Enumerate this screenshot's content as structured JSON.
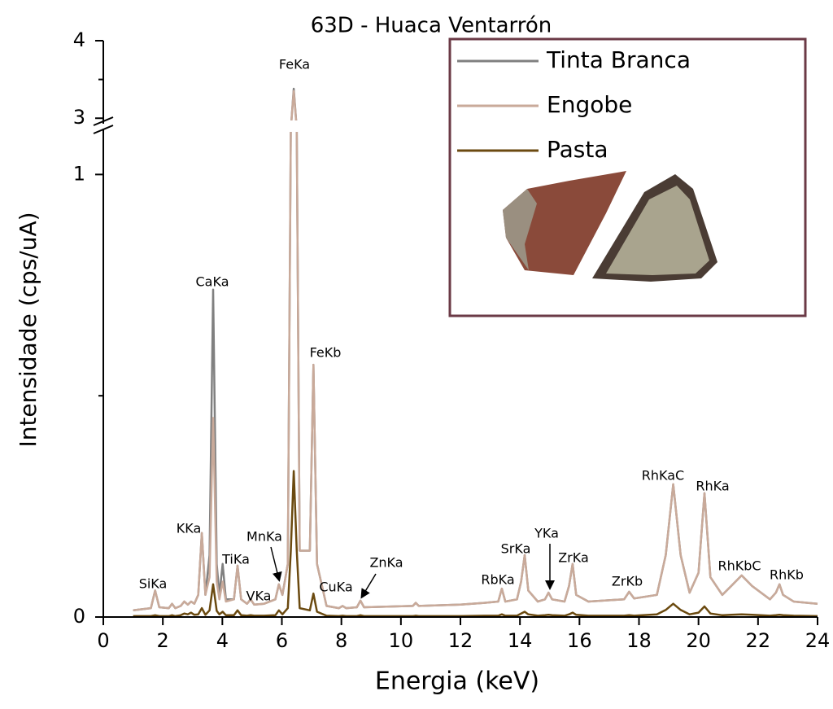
{
  "chart_data": {
    "type": "line",
    "title": "63D - Huaca Ventarrón",
    "x_label": "Energia (keV)",
    "y_label": "Intensidade (cps/uA)",
    "x": [
      1.0,
      1.6,
      1.74,
      1.88,
      2.2,
      2.31,
      2.42,
      2.6,
      2.72,
      2.84,
      2.95,
      3.06,
      3.19,
      3.31,
      3.43,
      3.57,
      3.69,
      3.81,
      3.9,
      4.01,
      4.12,
      4.39,
      4.51,
      4.63,
      4.83,
      4.95,
      5.07,
      5.4,
      5.78,
      5.9,
      6.02,
      6.2,
      6.3,
      6.4,
      6.5,
      6.6,
      6.94,
      7.06,
      7.18,
      7.5,
      7.92,
      8.04,
      8.16,
      8.52,
      8.64,
      8.76,
      10.4,
      10.5,
      10.6,
      12.0,
      12.8,
      13.27,
      13.39,
      13.51,
      13.9,
      14.04,
      14.16,
      14.28,
      14.6,
      14.84,
      14.96,
      15.08,
      15.5,
      15.65,
      15.77,
      15.89,
      16.3,
      17.5,
      17.67,
      17.84,
      18.6,
      18.9,
      19.15,
      19.4,
      19.7,
      20.0,
      20.2,
      20.4,
      20.8,
      21.1,
      21.45,
      21.8,
      22.4,
      22.6,
      22.72,
      22.84,
      23.2,
      24.0
    ],
    "series": [
      {
        "name": "Tinta Branca",
        "color": "#808080",
        "values": [
          0.015,
          0.02,
          0.06,
          0.022,
          0.02,
          0.03,
          0.02,
          0.025,
          0.035,
          0.028,
          0.035,
          0.03,
          0.05,
          0.19,
          0.05,
          0.14,
          0.74,
          0.12,
          0.05,
          0.12,
          0.04,
          0.04,
          0.116,
          0.04,
          0.03,
          0.04,
          0.028,
          0.03,
          0.04,
          0.074,
          0.05,
          0.12,
          1.4,
          3.38,
          1.4,
          0.15,
          0.15,
          0.57,
          0.12,
          0.025,
          0.02,
          0.025,
          0.02,
          0.022,
          0.037,
          0.022,
          0.025,
          0.032,
          0.025,
          0.028,
          0.032,
          0.035,
          0.064,
          0.035,
          0.04,
          0.08,
          0.14,
          0.06,
          0.035,
          0.04,
          0.055,
          0.04,
          0.035,
          0.07,
          0.12,
          0.05,
          0.035,
          0.04,
          0.057,
          0.042,
          0.05,
          0.14,
          0.3,
          0.14,
          0.055,
          0.1,
          0.28,
          0.09,
          0.05,
          0.07,
          0.094,
          0.07,
          0.04,
          0.055,
          0.074,
          0.05,
          0.035,
          0.03
        ]
      },
      {
        "name": "Engobe",
        "color": "#c9aa9a",
        "values": [
          0.015,
          0.02,
          0.06,
          0.022,
          0.02,
          0.03,
          0.02,
          0.025,
          0.035,
          0.028,
          0.035,
          0.03,
          0.05,
          0.19,
          0.05,
          0.09,
          0.45,
          0.08,
          0.04,
          0.08,
          0.035,
          0.04,
          0.116,
          0.04,
          0.03,
          0.04,
          0.028,
          0.03,
          0.04,
          0.074,
          0.05,
          0.12,
          1.4,
          3.35,
          1.4,
          0.15,
          0.15,
          0.57,
          0.12,
          0.025,
          0.02,
          0.025,
          0.02,
          0.022,
          0.037,
          0.022,
          0.025,
          0.032,
          0.025,
          0.028,
          0.032,
          0.035,
          0.064,
          0.035,
          0.04,
          0.08,
          0.14,
          0.06,
          0.035,
          0.04,
          0.055,
          0.04,
          0.035,
          0.07,
          0.12,
          0.05,
          0.035,
          0.04,
          0.057,
          0.042,
          0.05,
          0.14,
          0.3,
          0.14,
          0.055,
          0.1,
          0.28,
          0.09,
          0.05,
          0.07,
          0.094,
          0.07,
          0.04,
          0.055,
          0.074,
          0.05,
          0.035,
          0.03
        ]
      },
      {
        "name": "Pasta",
        "color": "#6b4a10",
        "values": [
          0.002,
          0.002,
          0.004,
          0.002,
          0.002,
          0.004,
          0.002,
          0.004,
          0.008,
          0.006,
          0.01,
          0.005,
          0.006,
          0.02,
          0.005,
          0.015,
          0.074,
          0.014,
          0.006,
          0.012,
          0.004,
          0.004,
          0.015,
          0.004,
          0.003,
          0.004,
          0.003,
          0.003,
          0.004,
          0.015,
          0.006,
          0.02,
          0.15,
          0.33,
          0.15,
          0.02,
          0.015,
          0.053,
          0.012,
          0.003,
          0.002,
          0.003,
          0.002,
          0.002,
          0.004,
          0.002,
          0.002,
          0.003,
          0.002,
          0.002,
          0.003,
          0.003,
          0.006,
          0.003,
          0.003,
          0.008,
          0.012,
          0.006,
          0.003,
          0.004,
          0.005,
          0.004,
          0.003,
          0.006,
          0.01,
          0.005,
          0.003,
          0.003,
          0.004,
          0.003,
          0.006,
          0.016,
          0.03,
          0.016,
          0.006,
          0.01,
          0.024,
          0.008,
          0.004,
          0.005,
          0.006,
          0.005,
          0.003,
          0.004,
          0.005,
          0.004,
          0.003,
          0.002
        ]
      }
    ],
    "annotations": [
      "SiKa",
      "KKa",
      "CaKa",
      "TiKa",
      "VKa",
      "MnKa",
      "FeKa",
      "FeKb",
      "CuKa",
      "ZnKa",
      "RbKa",
      "SrKa",
      "YKa",
      "ZrKa",
      "ZrKb",
      "RhKaC",
      "RhKa",
      "RhKbC",
      "RhKb"
    ],
    "xlim": [
      0,
      24
    ],
    "xticks": [
      0,
      2,
      4,
      6,
      8,
      10,
      12,
      14,
      16,
      18,
      20,
      22,
      24
    ],
    "ylim": [
      0,
      4
    ],
    "yticks": [
      0,
      1,
      3,
      4
    ],
    "yminor": [
      0.5,
      3.5
    ],
    "axis_break": [
      1.1,
      2.95
    ],
    "legend": "upper right",
    "legend_border": "#6b3a46"
  }
}
